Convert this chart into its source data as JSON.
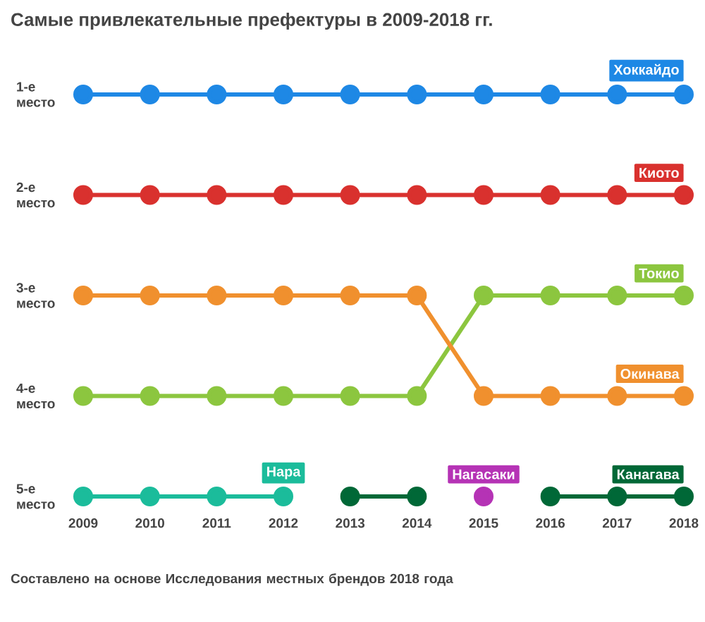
{
  "chart_data": {
    "type": "line",
    "title": "Самые привлекательные префектуры в 2009-2018 гг.",
    "x": [
      2009,
      2010,
      2011,
      2012,
      2013,
      2014,
      2015,
      2016,
      2017,
      2018
    ],
    "xlim": [
      2009,
      2018
    ],
    "xticks": [
      2009,
      2010,
      2011,
      2012,
      2013,
      2014,
      2015,
      2016,
      2017,
      2018
    ],
    "ylim": [
      5,
      1
    ],
    "yticks": [
      {
        "value": 1,
        "label": "1-е место"
      },
      {
        "value": 2,
        "label": "2-е место"
      },
      {
        "value": 3,
        "label": "3-е место"
      },
      {
        "value": 4,
        "label": "4-е место"
      },
      {
        "value": 5,
        "label": "5-е место"
      }
    ],
    "marker": "circle",
    "line_style": "solid",
    "grid": false,
    "series": [
      {
        "name": "Хоккайдо",
        "color": "#1e88e5",
        "values": [
          1,
          1,
          1,
          1,
          1,
          1,
          1,
          1,
          1,
          1
        ]
      },
      {
        "name": "Киото",
        "color": "#d9312e",
        "values": [
          2,
          2,
          2,
          2,
          2,
          2,
          2,
          2,
          2,
          2
        ]
      },
      {
        "name": "Токио",
        "color": "#8cc63f",
        "values": [
          4,
          4,
          4,
          4,
          4,
          4,
          3,
          3,
          3,
          3
        ]
      },
      {
        "name": "Окинава",
        "color": "#f0902e",
        "values": [
          3,
          3,
          3,
          3,
          3,
          3,
          4,
          4,
          4,
          4
        ]
      },
      {
        "name": "Нара",
        "color": "#1bbc9b",
        "values": [
          5,
          5,
          5,
          5,
          null,
          null,
          null,
          null,
          null,
          null
        ]
      },
      {
        "name": "Нагасаки",
        "color": "#b533b5",
        "values": [
          null,
          null,
          null,
          null,
          null,
          null,
          5,
          null,
          null,
          null
        ]
      },
      {
        "name": "Канагава",
        "color": "#006837",
        "values": [
          null,
          null,
          null,
          null,
          5,
          5,
          null,
          5,
          5,
          5
        ]
      }
    ],
    "annotations": [
      "Составлено на основе Исследования местных брендов 2018 года"
    ]
  }
}
